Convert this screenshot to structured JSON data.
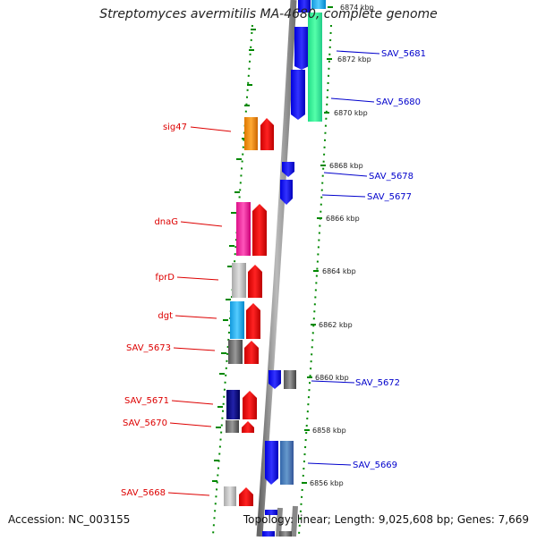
{
  "title": "Streptomyces avermitilis MA-4680, complete genome",
  "footer": {
    "accession": "Accession: NC_003155",
    "summary": "Topology: linear; Length: 9,025,608 bp; Genes: 7,669"
  },
  "ruler": {
    "ticks": [
      "6874 kbp",
      "6872 kbp",
      "6870 kbp",
      "6868 kbp",
      "6866 kbp",
      "6864 kbp",
      "6862 kbp",
      "6860 kbp",
      "6858 kbp",
      "6856 kbp"
    ]
  },
  "left_labels": [
    {
      "name": "sig47",
      "color": "#dd0000"
    },
    {
      "name": "dnaG",
      "color": "#dd0000"
    },
    {
      "name": "fprD",
      "color": "#dd0000"
    },
    {
      "name": "dgt",
      "color": "#dd0000"
    },
    {
      "name": "SAV_5673",
      "color": "#dd0000"
    },
    {
      "name": "SAV_5671",
      "color": "#dd0000"
    },
    {
      "name": "SAV_5670",
      "color": "#dd0000"
    },
    {
      "name": "SAV_5668",
      "color": "#dd0000"
    }
  ],
  "right_labels": [
    {
      "name": "SAV_5681",
      "color": "#0000cc"
    },
    {
      "name": "SAV_5680",
      "color": "#0000cc"
    },
    {
      "name": "SAV_5678",
      "color": "#0000cc"
    },
    {
      "name": "SAV_5677",
      "color": "#0000cc"
    },
    {
      "name": "SAV_5672",
      "color": "#0000cc"
    },
    {
      "name": "SAV_5669",
      "color": "#0000cc"
    }
  ],
  "colors": {
    "forward_gene": "#ee0000",
    "reverse_gene": "#0000ee",
    "backbone": "#888888",
    "tick_marks": "#008800"
  }
}
